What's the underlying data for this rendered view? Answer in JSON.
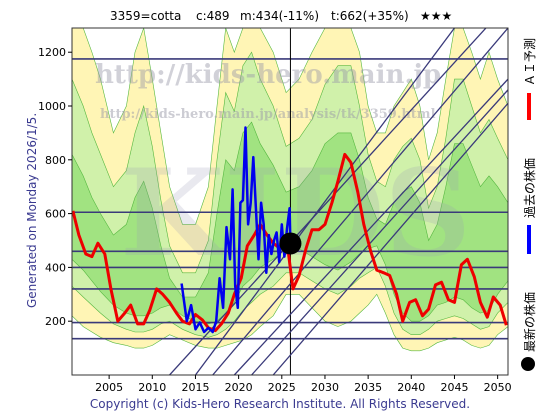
{
  "header": {
    "code": "3359=cotta",
    "current": "c:489",
    "mid": "m:434(-11%)",
    "target": "t:662(+35%)",
    "rating": "★★★"
  },
  "left_label": "Generated on Monday 2026/1/5.",
  "footer": "Copyright (c) Kids-Hero Research Institute. All Rights Reserved.",
  "watermarks": {
    "url_top": "http://kids-hero.main.jp",
    "url_sub": "http://kids-hero.main.jp/analysis/tk/3359.html",
    "logo": "KIDS"
  },
  "legend": [
    {
      "label": "ＡＩ予測",
      "color": "#ff0000",
      "marker": "line"
    },
    {
      "label": "過去の株価",
      "color": "#0000ff",
      "marker": "line"
    },
    {
      "label": "最新の株価",
      "color": "#000000",
      "marker": "dot"
    }
  ],
  "colors": {
    "ai_line": "#ee0000",
    "past_line": "#0000ee",
    "band_green": "#99e07a",
    "band_light": "#c8f0a8",
    "band_yellow": "#fff3a8",
    "grid_lines": "#3a3a7a",
    "frame": "#333333"
  },
  "chart_data": {
    "type": "line",
    "xlim": [
      2000.7,
      2051.2
    ],
    "ylim": [
      0,
      1290
    ],
    "x_ticks": [
      2005,
      2010,
      2015,
      2020,
      2025,
      2030,
      2035,
      2040,
      2045,
      2050
    ],
    "y_ticks": [
      200,
      400,
      600,
      800,
      1000,
      1200
    ],
    "hlines": [
      135,
      195,
      320,
      400,
      460,
      605,
      1175
    ],
    "vline_x": 2026.0,
    "latest_point": {
      "x": 2026.0,
      "y": 489
    },
    "series": [
      {
        "name": "ＡＩ予測",
        "x": [
          2000.8,
          2001.5,
          2002.3,
          2003,
          2003.7,
          2004.5,
          2005.2,
          2006,
          2006.8,
          2007.5,
          2008.3,
          2009,
          2009.7,
          2010.5,
          2011.2,
          2012,
          2012.8,
          2013.5,
          2014.3,
          2015,
          2015.8,
          2016.5,
          2017.3,
          2018,
          2018.8,
          2019.5,
          2020.3,
          2021,
          2021.8,
          2022.5,
          2023.3,
          2024,
          2024.8,
          2025.5,
          2026.3,
          2027,
          2027.8,
          2028.5,
          2029.3,
          2030,
          2030.8,
          2031.5,
          2032.3,
          2033,
          2033.8,
          2034.5,
          2035.3,
          2036,
          2036.8,
          2037.5,
          2038.3,
          2039,
          2039.8,
          2040.5,
          2041.3,
          2042,
          2042.8,
          2043.5,
          2044.3,
          2045,
          2045.8,
          2046.5,
          2047.3,
          2048,
          2048.8,
          2049.5,
          2050.3,
          2051
        ],
        "y": [
          610,
          520,
          450,
          440,
          490,
          450,
          320,
          200,
          230,
          260,
          190,
          190,
          240,
          320,
          300,
          270,
          230,
          200,
          190,
          225,
          205,
          175,
          165,
          190,
          230,
          300,
          360,
          480,
          520,
          560,
          520,
          490,
          470,
          520,
          320,
          370,
          470,
          540,
          540,
          560,
          640,
          720,
          820,
          790,
          680,
          560,
          460,
          390,
          380,
          370,
          300,
          200,
          270,
          280,
          220,
          245,
          335,
          345,
          280,
          270,
          410,
          430,
          365,
          270,
          215,
          290,
          260,
          185
        ]
      },
      {
        "name": "過去の株価",
        "x": [
          2013.4,
          2014,
          2014.5,
          2015,
          2015.5,
          2016,
          2016.5,
          2017,
          2017.4,
          2017.8,
          2018.2,
          2018.6,
          2019,
          2019.3,
          2019.6,
          2019.9,
          2020.2,
          2020.5,
          2020.8,
          2021.1,
          2021.4,
          2021.7,
          2022,
          2022.3,
          2022.6,
          2022.9,
          2023.2,
          2023.5,
          2023.8,
          2024.1,
          2024.4,
          2024.7,
          2025,
          2025.3,
          2025.6,
          2025.9,
          2026
        ],
        "y": [
          340,
          200,
          260,
          170,
          195,
          160,
          175,
          160,
          200,
          360,
          250,
          550,
          430,
          690,
          330,
          250,
          640,
          650,
          920,
          560,
          640,
          810,
          620,
          430,
          640,
          560,
          380,
          520,
          450,
          500,
          530,
          420,
          560,
          440,
          545,
          620,
          489
        ]
      }
    ],
    "bands": [
      {
        "name": "light",
        "x": [
          2000.7,
          2002,
          2003,
          2004,
          2005.5,
          2007,
          2008,
          2009,
          2010,
          2011,
          2012,
          2013.5,
          2015,
          2016.5,
          2017.5,
          2018.5,
          2019.5,
          2020.5,
          2021.5,
          2022.5,
          2024,
          2025.5,
          2027,
          2028.5,
          2030,
          2031.5,
          2033,
          2034,
          2035,
          2036,
          2037,
          2038,
          2039,
          2040,
          2041,
          2042,
          2043,
          2044,
          2045,
          2046,
          2047,
          2048,
          2049,
          2050,
          2051.2
        ],
        "upper": [
          1290,
          1290,
          1200,
          1100,
          900,
          1000,
          1200,
          1290,
          1100,
          900,
          700,
          560,
          560,
          700,
          1000,
          1290,
          1200,
          1290,
          1290,
          1290,
          1200,
          1050,
          1100,
          1200,
          1290,
          1290,
          1290,
          1200,
          1000,
          900,
          900,
          1000,
          1050,
          1100,
          1000,
          800,
          900,
          1100,
          1290,
          1290,
          1200,
          1100,
          1200,
          1100,
          1000
        ],
        "lower": [
          220,
          180,
          160,
          140,
          120,
          110,
          100,
          100,
          110,
          130,
          150,
          130,
          110,
          100,
          100,
          110,
          120,
          130,
          150,
          180,
          220,
          300,
          300,
          250,
          200,
          180,
          200,
          230,
          260,
          300,
          230,
          150,
          100,
          90,
          90,
          100,
          120,
          130,
          140,
          130,
          110,
          100,
          110,
          150,
          180
        ]
      },
      {
        "name": "mid",
        "x": [
          2000.7,
          2002,
          2003,
          2004,
          2005.5,
          2007,
          2008,
          2009,
          2010,
          2011,
          2012,
          2013.5,
          2015,
          2016.5,
          2017.5,
          2018.5,
          2019.5,
          2020.5,
          2021.5,
          2022.5,
          2024,
          2025.5,
          2027,
          2028.5,
          2030,
          2031.5,
          2033,
          2034,
          2035,
          2036,
          2037,
          2038,
          2039,
          2040,
          2041,
          2042,
          2043,
          2044,
          2045,
          2046,
          2047,
          2048,
          2049,
          2050,
          2051.2
        ],
        "upper": [
          1100,
          1000,
          900,
          820,
          700,
          760,
          900,
          1000,
          850,
          650,
          480,
          380,
          380,
          500,
          800,
          1050,
          980,
          1150,
          1200,
          1100,
          1000,
          850,
          880,
          950,
          1080,
          1150,
          1150,
          1000,
          820,
          720,
          700,
          800,
          850,
          880,
          800,
          620,
          700,
          880,
          1100,
          1100,
          1000,
          900,
          950,
          880,
          800
        ],
        "lower": [
          330,
          290,
          260,
          230,
          190,
          170,
          160,
          160,
          170,
          190,
          200,
          170,
          150,
          140,
          150,
          170,
          200,
          240,
          270,
          300,
          330,
          380,
          380,
          350,
          320,
          300,
          330,
          360,
          380,
          400,
          330,
          230,
          170,
          150,
          150,
          170,
          200,
          210,
          220,
          210,
          190,
          170,
          180,
          230,
          270
        ]
      },
      {
        "name": "core",
        "x": [
          2000.7,
          2002,
          2003,
          2004,
          2005.5,
          2007,
          2008,
          2009,
          2010,
          2011,
          2012,
          2013.5,
          2015,
          2016.5,
          2017.5,
          2018.5,
          2019.5,
          2020.5,
          2021.5,
          2022.5,
          2024,
          2025.5,
          2027,
          2028.5,
          2030,
          2031.5,
          2033,
          2034,
          2035,
          2036,
          2037,
          2038,
          2039,
          2040,
          2041,
          2042,
          2043,
          2044,
          2045,
          2046,
          2047,
          2048,
          2049,
          2050,
          2051.2
        ],
        "upper": [
          820,
          740,
          660,
          600,
          520,
          560,
          660,
          720,
          620,
          480,
          360,
          290,
          290,
          380,
          600,
          800,
          760,
          900,
          940,
          860,
          780,
          680,
          700,
          760,
          860,
          900,
          900,
          800,
          660,
          580,
          560,
          640,
          680,
          700,
          640,
          500,
          560,
          700,
          860,
          860,
          780,
          700,
          740,
          700,
          640
        ],
        "lower": [
          430,
          390,
          350,
          310,
          260,
          230,
          220,
          220,
          230,
          250,
          260,
          220,
          200,
          190,
          200,
          230,
          270,
          330,
          360,
          400,
          430,
          470,
          470,
          440,
          410,
          390,
          420,
          450,
          470,
          480,
          410,
          300,
          230,
          200,
          200,
          220,
          260,
          270,
          290,
          280,
          250,
          230,
          240,
          300,
          350
        ]
      }
    ],
    "diagonals": [
      {
        "p1": [
          2012.0,
          0
        ],
        "p2": [
          2051.2,
          1380
        ]
      },
      {
        "p1": [
          2017.0,
          0
        ],
        "p2": [
          2051.2,
          1290
        ]
      },
      {
        "p1": [
          2019.5,
          0
        ],
        "p2": [
          2051.2,
          1100
        ]
      },
      {
        "p1": [
          2021.5,
          0
        ],
        "p2": [
          2051.2,
          1060
        ]
      },
      {
        "p1": [
          2024.0,
          0
        ],
        "p2": [
          2051.2,
          1010
        ]
      },
      {
        "p1": [
          2015.0,
          0
        ],
        "p2": [
          2045.0,
          1290
        ]
      }
    ]
  }
}
